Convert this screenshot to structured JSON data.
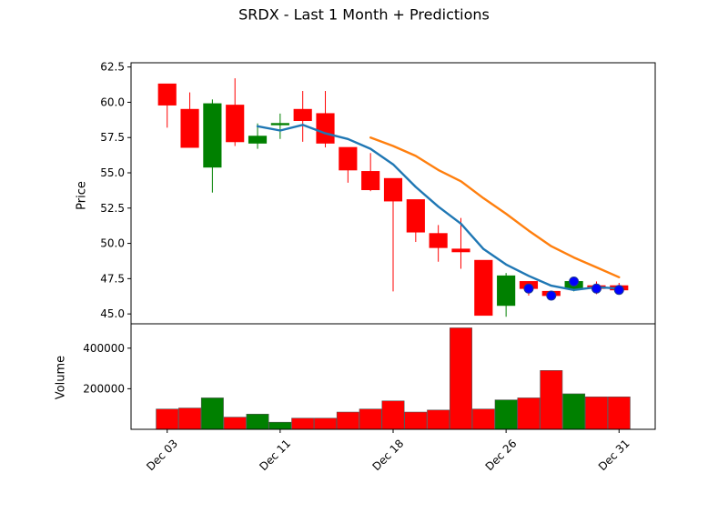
{
  "chart_data": {
    "type": "candlestick",
    "title": "SRDX - Last 1 Month + Predictions",
    "price_panel": {
      "ylabel": "Price",
      "ylim": [
        44.3,
        62.8
      ],
      "yticks": [
        "45.0",
        "47.5",
        "50.0",
        "52.5",
        "55.0",
        "57.5",
        "60.0",
        "62.5"
      ],
      "ytick_values": [
        45.0,
        47.5,
        50.0,
        52.5,
        55.0,
        57.5,
        60.0,
        62.5
      ]
    },
    "volume_panel": {
      "ylabel": "Volume",
      "ylim": [
        0,
        520000
      ],
      "yticks": [
        "200000",
        "400000"
      ],
      "ytick_values": [
        200000,
        400000
      ]
    },
    "x": {
      "xlim": [
        -1.6,
        21.6
      ],
      "ticks": [
        "Dec 03",
        "Dec 11",
        "Dec 18",
        "Dec 26",
        "Dec 31"
      ],
      "tick_positions": [
        0,
        5,
        10,
        15,
        20
      ]
    },
    "colors": {
      "up": "#008000",
      "down": "#ff0000",
      "ma_short": "#1f77b4",
      "ma_long": "#ff7f0e",
      "prediction": "#0000ff",
      "prediction_edge": "#1f3a93"
    },
    "candles": [
      {
        "open": 61.3,
        "high": 61.3,
        "low": 58.2,
        "close": 59.8,
        "volume": 100000
      },
      {
        "open": 59.5,
        "high": 60.7,
        "low": 56.8,
        "close": 56.8,
        "volume": 105000
      },
      {
        "open": 55.4,
        "high": 60.2,
        "low": 53.6,
        "close": 59.9,
        "volume": 155000
      },
      {
        "open": 59.8,
        "high": 61.7,
        "low": 56.9,
        "close": 57.2,
        "volume": 60000
      },
      {
        "open": 57.1,
        "high": 58.5,
        "low": 56.7,
        "close": 57.6,
        "volume": 75000
      },
      {
        "open": 58.4,
        "high": 59.2,
        "low": 57.4,
        "close": 58.5,
        "volume": 35000
      },
      {
        "open": 59.5,
        "high": 60.8,
        "low": 57.2,
        "close": 58.7,
        "volume": 55000
      },
      {
        "open": 59.2,
        "high": 60.8,
        "low": 56.8,
        "close": 57.1,
        "volume": 55000
      },
      {
        "open": 56.8,
        "high": 56.8,
        "low": 54.3,
        "close": 55.2,
        "volume": 85000
      },
      {
        "open": 55.1,
        "high": 56.4,
        "low": 53.7,
        "close": 53.8,
        "volume": 100000
      },
      {
        "open": 54.6,
        "high": 54.6,
        "low": 46.6,
        "close": 53.0,
        "volume": 140000
      },
      {
        "open": 53.1,
        "high": 53.1,
        "low": 50.1,
        "close": 50.8,
        "volume": 85000
      },
      {
        "open": 50.7,
        "high": 51.3,
        "low": 48.7,
        "close": 49.7,
        "volume": 95000
      },
      {
        "open": 49.6,
        "high": 51.8,
        "low": 48.2,
        "close": 49.4,
        "volume": 500000
      },
      {
        "open": 48.8,
        "high": 48.8,
        "low": 44.9,
        "close": 44.9,
        "volume": 100000
      },
      {
        "open": 45.6,
        "high": 47.9,
        "low": 44.8,
        "close": 47.7,
        "volume": 145000
      },
      {
        "open": 47.3,
        "high": 47.3,
        "low": 46.3,
        "close": 46.8,
        "volume": 155000
      },
      {
        "open": 46.6,
        "high": 46.6,
        "low": 46.1,
        "close": 46.3,
        "volume": 290000
      },
      {
        "open": 46.8,
        "high": 47.5,
        "low": 46.6,
        "close": 47.3,
        "volume": 175000
      },
      {
        "open": 47.0,
        "high": 47.3,
        "low": 46.4,
        "close": 46.8,
        "volume": 160000
      },
      {
        "open": 47.0,
        "high": 47.2,
        "low": 46.4,
        "close": 46.7,
        "volume": 160000
      }
    ],
    "series": [
      {
        "values": [
          null,
          null,
          null,
          null,
          58.3,
          58.0,
          58.4,
          57.8,
          57.4,
          56.7,
          55.6,
          54.0,
          52.6,
          51.4,
          49.6,
          48.5,
          47.7,
          47.0,
          46.7,
          46.9,
          46.8
        ]
      },
      {
        "values": [
          null,
          null,
          null,
          null,
          null,
          null,
          null,
          null,
          null,
          57.5,
          56.9,
          56.2,
          55.2,
          54.4,
          53.2,
          52.1,
          50.9,
          49.8,
          49.0,
          48.3,
          47.6
        ]
      }
    ],
    "predictions": {
      "x": [
        16,
        17,
        18,
        19,
        20
      ],
      "values": [
        46.8,
        46.3,
        47.3,
        46.8,
        46.7
      ]
    }
  }
}
